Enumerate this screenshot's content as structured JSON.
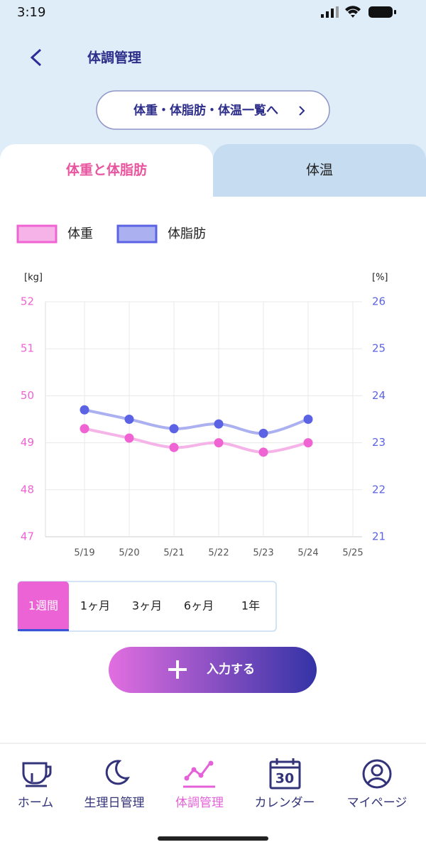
{
  "status_bar": {
    "time": "3:19"
  },
  "header": {
    "title": "体調管理",
    "list_button": "体重・体脂肪・体温一覧へ"
  },
  "tabs": [
    {
      "label": "体重と体脂肪",
      "active": true
    },
    {
      "label": "体温",
      "active": false
    }
  ],
  "chart_data": {
    "type": "line",
    "y_label": "[kg]",
    "y2_label": "[%]",
    "categories": [
      "5/19",
      "5/20",
      "5/21",
      "5/22",
      "5/23",
      "5/24",
      "5/25"
    ],
    "series": [
      {
        "name": "体重",
        "color": "#ef63d2",
        "line_color": "#f5b3e8",
        "values": [
          49.3,
          49.1,
          48.9,
          49.0,
          48.8,
          49.0,
          null
        ]
      },
      {
        "name": "体脂肪",
        "color": "#5b63e4",
        "line_color": "#aab0f0",
        "axis": "y2",
        "values": [
          23.7,
          23.5,
          23.3,
          23.4,
          23.2,
          23.5,
          null
        ]
      }
    ],
    "ylim": [
      47,
      52
    ],
    "yticks": [
      47,
      48,
      49,
      50,
      51,
      52
    ],
    "y2lim": [
      21,
      26
    ],
    "y2ticks": [
      21,
      22,
      23,
      24,
      25,
      26
    ],
    "grid": true
  },
  "periods": {
    "options": [
      "1週間",
      "1ヶ月",
      "3ヶ月",
      "6ヶ月",
      "1年"
    ],
    "selected": 0
  },
  "action_button": "入力する",
  "nav": {
    "active": 2,
    "items": [
      {
        "label": "ホーム"
      },
      {
        "label": "生理日管理"
      },
      {
        "label": "体調管理"
      },
      {
        "label": "カレンダー",
        "icon_text": "30"
      },
      {
        "label": "マイページ"
      }
    ]
  }
}
